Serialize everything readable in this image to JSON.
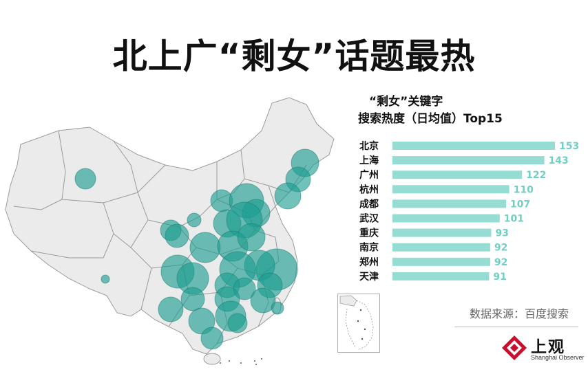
{
  "headline": "北上广“剩女”话题最热",
  "chart_data": {
    "type": "bar",
    "orientation": "horizontal",
    "title_line1": "“剩女”关键字",
    "title_line2": "搜索热度（日均值）Top15",
    "categories": [
      "北京",
      "上海",
      "广州",
      "杭州",
      "成都",
      "武汉",
      "重庆",
      "南京",
      "郑州",
      "天津"
    ],
    "values": [
      153,
      143,
      122,
      110,
      107,
      101,
      93,
      92,
      92,
      91
    ],
    "bar_color": "#95dcd3",
    "value_label_color": "#6ed0c4"
  },
  "source": "数据来源：百度搜索",
  "logo": {
    "name": "上观",
    "sub": "Shanghai Observer",
    "color": "#c8102e"
  },
  "colors": {
    "map_fill": "#ebebeb",
    "map_border": "#9a9a9a",
    "bubble": "#1a9c8f"
  }
}
